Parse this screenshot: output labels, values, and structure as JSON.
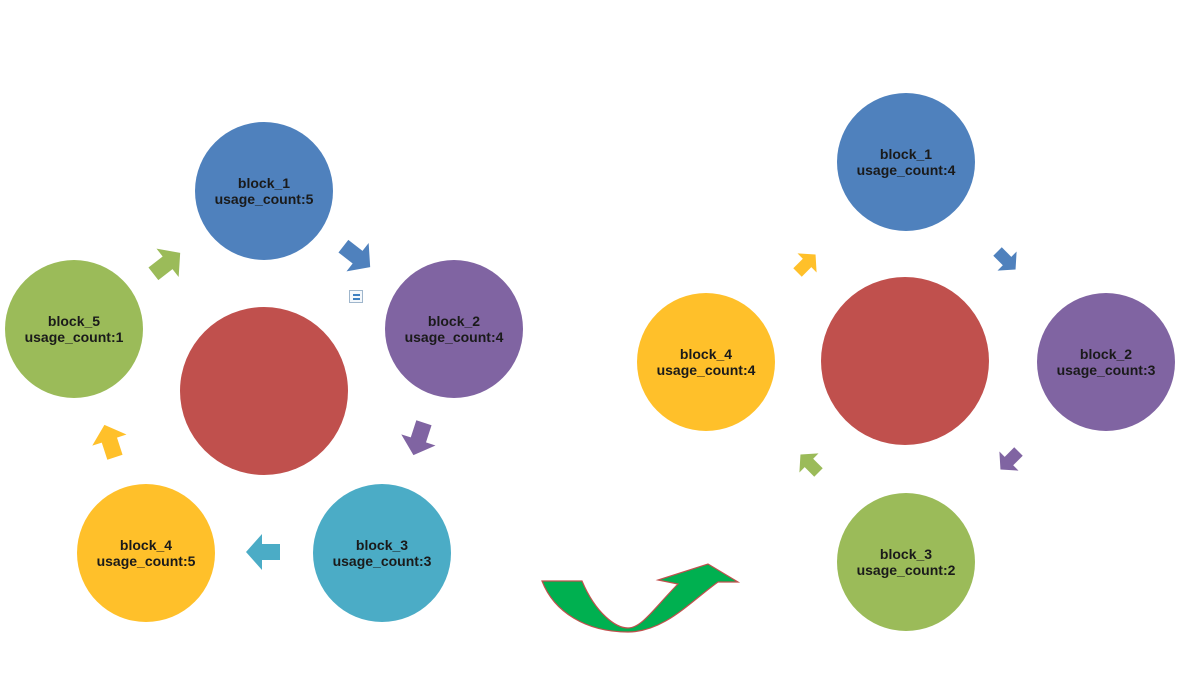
{
  "colors": {
    "blue": "#4f81bd",
    "purple": "#8064a2",
    "teal": "#4bacc6",
    "yellow": "#ffc02a",
    "green": "#9bbb59",
    "red": "#c0504d",
    "transition_arrow": "#00b050",
    "transition_arrow_outline": "#c0504d"
  },
  "left_diagram": {
    "blocks": [
      {
        "name": "block_1",
        "count": "usage_count:5",
        "color": "blue"
      },
      {
        "name": "block_2",
        "count": "usage_count:4",
        "color": "purple"
      },
      {
        "name": "block_3",
        "count": "usage_count:3",
        "color": "teal"
      },
      {
        "name": "block_4",
        "count": "usage_count:5",
        "color": "yellow"
      },
      {
        "name": "block_5",
        "count": "usage_count:1",
        "color": "green"
      }
    ],
    "center_color": "red"
  },
  "right_diagram": {
    "blocks": [
      {
        "name": "block_1",
        "count": "usage_count:4",
        "color": "blue"
      },
      {
        "name": "block_2",
        "count": "usage_count:3",
        "color": "purple"
      },
      {
        "name": "block_3",
        "count": "usage_count:2",
        "color": "green"
      },
      {
        "name": "block_4",
        "count": "usage_count:4",
        "color": "yellow"
      }
    ],
    "center_color": "red"
  },
  "icons": {
    "cycle_arrow": "cycle-arrow-icon",
    "transition_arrow": "curved-up-arrow-icon",
    "layout_options": "layout-options-icon"
  }
}
